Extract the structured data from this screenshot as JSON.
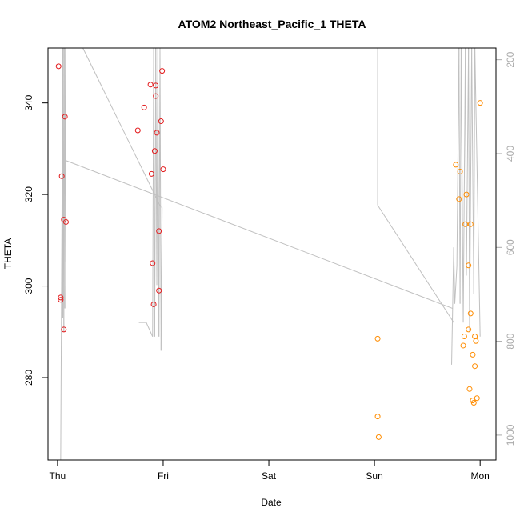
{
  "chart_data": {
    "type": "scatter",
    "title": "ATOM2 Northeast_Pacific_1 THETA",
    "xlabel": "Date",
    "ylabel": "THETA",
    "x_ticks": [
      "Thu",
      "Fri",
      "Sat",
      "Sun",
      "Mon"
    ],
    "x_tick_days": [
      0,
      1,
      2,
      3,
      4
    ],
    "ylim": [
      262,
      352
    ],
    "y_ticks": [
      280,
      300,
      320,
      340
    ],
    "y2_ticks": [
      200,
      400,
      600,
      800,
      1000
    ],
    "y2_scale": {
      "value_at_bottom_left": 1053,
      "value_at_top_left": 175
    },
    "colors": {
      "track": "#c0c0c0",
      "series1": "#e31a1c",
      "series2": "#ff8c00",
      "axis": "#000000",
      "right_axis": "#aaaaaa"
    },
    "series": [
      {
        "points": [
          [
            0.01,
            348.0
          ],
          [
            0.03,
            297.5
          ],
          [
            0.03,
            297.0
          ],
          [
            0.04,
            324.0
          ],
          [
            0.06,
            290.5
          ],
          [
            0.06,
            314.5
          ],
          [
            0.07,
            337.0
          ],
          [
            0.08,
            314.0
          ],
          [
            0.76,
            334.0
          ],
          [
            0.82,
            339.0
          ],
          [
            0.88,
            344.0
          ],
          [
            0.89,
            324.5
          ],
          [
            0.9,
            305.0
          ],
          [
            0.91,
            296.0
          ],
          [
            0.92,
            329.5
          ],
          [
            0.93,
            341.5
          ],
          [
            0.94,
            333.5
          ],
          [
            0.93,
            343.8
          ],
          [
            0.96,
            312.0
          ],
          [
            0.96,
            299.0
          ],
          [
            0.98,
            336.0
          ],
          [
            0.99,
            347.0
          ],
          [
            1.0,
            325.5
          ]
        ]
      },
      {
        "points": [
          [
            3.03,
            288.5
          ],
          [
            3.03,
            271.5
          ],
          [
            3.04,
            267.0
          ],
          [
            3.77,
            326.5
          ],
          [
            3.8,
            319.0
          ],
          [
            3.81,
            325.0
          ],
          [
            3.84,
            287.0
          ],
          [
            3.85,
            289.0
          ],
          [
            3.86,
            313.5
          ],
          [
            3.87,
            320.0
          ],
          [
            3.89,
            290.5
          ],
          [
            3.89,
            304.5
          ],
          [
            3.9,
            277.5
          ],
          [
            3.91,
            294.0
          ],
          [
            3.91,
            313.5
          ],
          [
            3.93,
            285.0
          ],
          [
            3.93,
            275.0
          ],
          [
            3.94,
            274.5
          ],
          [
            3.95,
            289.0
          ],
          [
            3.95,
            282.5
          ],
          [
            3.96,
            288.0
          ],
          [
            3.97,
            275.5
          ],
          [
            4.0,
            340.0
          ]
        ]
      }
    ],
    "track_segments": [
      [
        [
          0.03,
          1053
        ],
        [
          0.05,
          175
        ]
      ],
      [
        [
          0.05,
          175
        ],
        [
          0.05,
          750
        ]
      ],
      [
        [
          0.05,
          750
        ],
        [
          0.05,
          175
        ]
      ],
      [
        [
          0.05,
          175
        ],
        [
          0.06,
          780
        ]
      ],
      [
        [
          0.06,
          780
        ],
        [
          0.06,
          175
        ]
      ],
      [
        [
          0.06,
          175
        ],
        [
          0.07,
          730
        ]
      ],
      [
        [
          0.07,
          730
        ],
        [
          0.07,
          175
        ]
      ],
      [
        [
          0.07,
          175
        ],
        [
          0.08,
          630
        ]
      ],
      [
        [
          0.08,
          630
        ],
        [
          0.08,
          415
        ]
      ],
      [
        [
          0.08,
          415
        ],
        [
          3.74,
          730
        ]
      ],
      [
        [
          0.24,
          175
        ],
        [
          0.98,
          515
        ]
      ],
      [
        [
          0.77,
          760
        ],
        [
          0.84,
          760
        ]
      ],
      [
        [
          0.84,
          760
        ],
        [
          0.9,
          790
        ]
      ],
      [
        [
          0.9,
          790
        ],
        [
          0.91,
          175
        ]
      ],
      [
        [
          0.91,
          175
        ],
        [
          0.92,
          790
        ]
      ],
      [
        [
          0.92,
          790
        ],
        [
          0.93,
          175
        ]
      ],
      [
        [
          0.93,
          175
        ],
        [
          0.94,
          680
        ]
      ],
      [
        [
          0.94,
          680
        ],
        [
          0.95,
          175
        ]
      ],
      [
        [
          0.95,
          175
        ],
        [
          0.96,
          790
        ]
      ],
      [
        [
          0.96,
          790
        ],
        [
          0.97,
          175
        ]
      ],
      [
        [
          0.97,
          175
        ],
        [
          0.98,
          820
        ]
      ],
      [
        [
          0.98,
          820
        ],
        [
          0.99,
          515
        ]
      ],
      [
        [
          3.03,
          175
        ],
        [
          3.03,
          510
        ]
      ],
      [
        [
          3.03,
          510
        ],
        [
          3.75,
          760
        ]
      ],
      [
        [
          3.73,
          850
        ],
        [
          3.75,
          600
        ]
      ],
      [
        [
          3.75,
          600
        ],
        [
          3.76,
          720
        ]
      ],
      [
        [
          3.76,
          720
        ],
        [
          3.78,
          640
        ]
      ],
      [
        [
          3.78,
          640
        ],
        [
          3.8,
          175
        ]
      ],
      [
        [
          3.8,
          175
        ],
        [
          3.81,
          720
        ]
      ],
      [
        [
          3.81,
          720
        ],
        [
          3.82,
          175
        ]
      ],
      [
        [
          3.82,
          175
        ],
        [
          3.84,
          760
        ]
      ],
      [
        [
          3.84,
          760
        ],
        [
          3.86,
          175
        ]
      ],
      [
        [
          3.86,
          175
        ],
        [
          3.87,
          660
        ]
      ],
      [
        [
          3.87,
          660
        ],
        [
          3.89,
          175
        ]
      ],
      [
        [
          3.89,
          175
        ],
        [
          3.9,
          780
        ]
      ],
      [
        [
          3.9,
          780
        ],
        [
          3.92,
          175
        ]
      ],
      [
        [
          3.92,
          175
        ],
        [
          3.94,
          700
        ]
      ],
      [
        [
          3.94,
          700
        ],
        [
          3.95,
          175
        ]
      ],
      [
        [
          3.95,
          175
        ],
        [
          4.0,
          790
        ]
      ]
    ]
  }
}
